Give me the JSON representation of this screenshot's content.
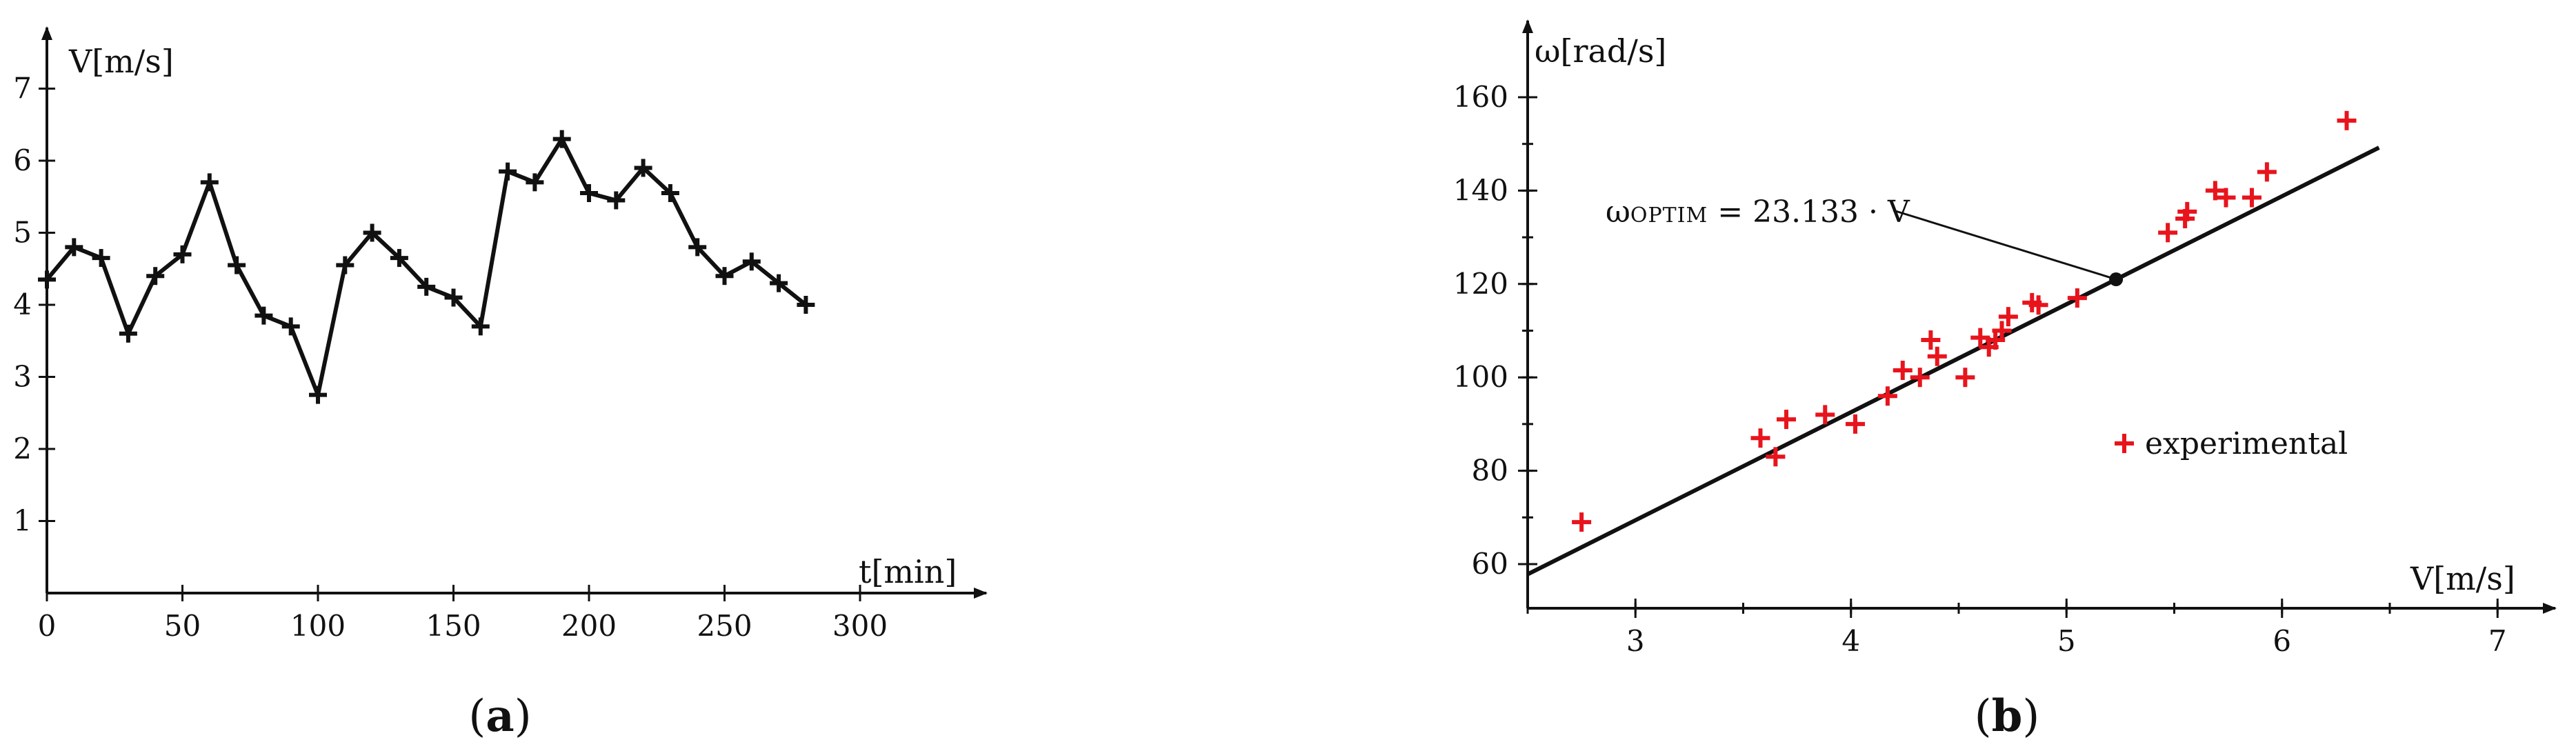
{
  "chart_data": [
    {
      "type": "line",
      "panel_label": "a",
      "xlabel": "t[min]",
      "ylabel": "V[m/s]",
      "xlim": [
        0,
        350
      ],
      "ylim": [
        0,
        7.8
      ],
      "x_ticks": [
        0,
        50,
        100,
        150,
        200,
        250,
        300
      ],
      "x_tick_labels": [
        "0",
        "50",
        "100",
        "150",
        "200",
        "250",
        "300"
      ],
      "y_ticks": [
        1,
        2,
        3,
        4,
        5,
        6,
        7
      ],
      "y_tick_labels": [
        "1",
        "2",
        "3",
        "4",
        "5",
        "6",
        "7"
      ],
      "marker": "plus",
      "grid": false,
      "series": [
        {
          "x": [
            0,
            10,
            20,
            30,
            40,
            50,
            60,
            70,
            80,
            90,
            100,
            110,
            120,
            130,
            140,
            150,
            160,
            170,
            180,
            190,
            200,
            210,
            220,
            230,
            240,
            250,
            260,
            270,
            280
          ],
          "values": [
            4.35,
            4.8,
            4.65,
            3.6,
            4.4,
            4.7,
            5.7,
            4.55,
            3.85,
            3.7,
            2.75,
            4.55,
            5.0,
            4.65,
            4.25,
            4.1,
            3.7,
            5.85,
            5.7,
            6.3,
            5.55,
            5.45,
            5.9,
            5.55,
            4.8,
            4.4,
            4.6,
            4.3,
            4.0
          ]
        }
      ]
    },
    {
      "type": "scatter",
      "panel_label": "b",
      "xlabel": "V[m/s]",
      "ylabel": "ω[rad/s]",
      "xlim": [
        2.5,
        7.3
      ],
      "ylim": [
        50,
        168
      ],
      "x_ticks": [
        3,
        4,
        5,
        6,
        7
      ],
      "x_tick_labels": [
        "3",
        "4",
        "5",
        "6",
        "7"
      ],
      "y_ticks": [
        60,
        80,
        100,
        120,
        140,
        160
      ],
      "y_tick_labels": [
        "60",
        "80",
        "100",
        "120",
        "140",
        "160"
      ],
      "grid": false,
      "legend": {
        "position": "lower-right",
        "label": "experimental"
      },
      "series": [
        {
          "name": "experimental",
          "color": "#e8141c",
          "marker": "plus",
          "points": [
            [
              2.75,
              69
            ],
            [
              3.58,
              87
            ],
            [
              3.65,
              83
            ],
            [
              3.7,
              91
            ],
            [
              3.88,
              92
            ],
            [
              4.02,
              90
            ],
            [
              4.17,
              96
            ],
            [
              4.24,
              101.5
            ],
            [
              4.32,
              100
            ],
            [
              4.37,
              108
            ],
            [
              4.4,
              104.5
            ],
            [
              4.53,
              100
            ],
            [
              4.6,
              108.5
            ],
            [
              4.64,
              106.5
            ],
            [
              4.67,
              108
            ],
            [
              4.7,
              110
            ],
            [
              4.73,
              113
            ],
            [
              4.84,
              116
            ],
            [
              4.87,
              115.5
            ],
            [
              5.05,
              117
            ],
            [
              5.47,
              131
            ],
            [
              5.55,
              134
            ],
            [
              5.56,
              135.5
            ],
            [
              5.69,
              140
            ],
            [
              5.74,
              138.5
            ],
            [
              5.86,
              138.5
            ],
            [
              5.93,
              144
            ],
            [
              6.3,
              155
            ]
          ]
        }
      ],
      "fit_line": {
        "slope": 23.133,
        "x_range": [
          2.5,
          6.45
        ],
        "color": "#111111"
      },
      "annotation": {
        "prefix": "ω",
        "subscript": "OPTIM",
        "suffix": " = 23.133 · V",
        "point": [
          5.23,
          121
        ]
      }
    }
  ]
}
